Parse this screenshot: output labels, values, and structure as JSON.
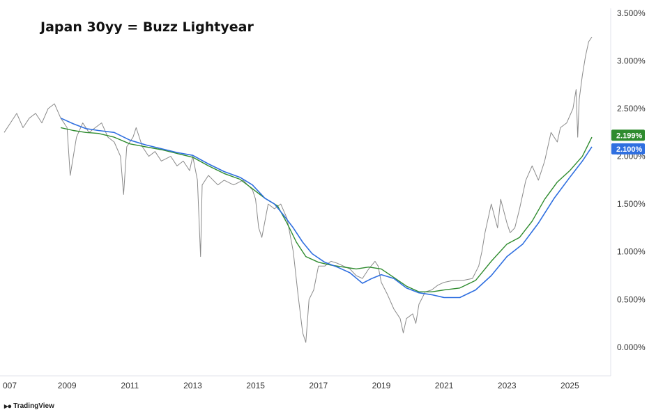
{
  "title": "Japan 30yy = Buzz Lightyear",
  "branding": "TradingView",
  "chart_data": {
    "type": "line",
    "xlim": [
      2007.0,
      2026.3
    ],
    "ylim": [
      -0.3,
      3.55
    ],
    "x_ticks": [
      "007",
      "2009",
      "2011",
      "2013",
      "2015",
      "2017",
      "2019",
      "2021",
      "2023",
      "2025"
    ],
    "x_tick_values": [
      2007.0,
      2009.0,
      2011.0,
      2013.0,
      2015.0,
      2017.0,
      2019.0,
      2021.0,
      2023.0,
      2025.0
    ],
    "y_ticks": [
      "0.000%",
      "0.500%",
      "1.000%",
      "1.500%",
      "2.000%",
      "2.500%",
      "3.000%",
      "3.500%"
    ],
    "y_tick_values": [
      0,
      0.5,
      1.0,
      1.5,
      2.0,
      2.5,
      3.0,
      3.5
    ],
    "colors": {
      "price": "#8a8a8a",
      "green": "#2e8b2e",
      "blue": "#2f6fe0"
    },
    "series": [
      {
        "values": [
          [
            2007.0,
            2.25
          ],
          [
            2007.2,
            2.35
          ],
          [
            2007.4,
            2.45
          ],
          [
            2007.6,
            2.3
          ],
          [
            2007.8,
            2.4
          ],
          [
            2008.0,
            2.45
          ],
          [
            2008.2,
            2.35
          ],
          [
            2008.4,
            2.5
          ],
          [
            2008.6,
            2.55
          ],
          [
            2008.8,
            2.4
          ],
          [
            2009.0,
            2.3
          ],
          [
            2009.1,
            1.8
          ],
          [
            2009.3,
            2.2
          ],
          [
            2009.5,
            2.35
          ],
          [
            2009.7,
            2.25
          ],
          [
            2009.9,
            2.3
          ],
          [
            2010.1,
            2.35
          ],
          [
            2010.3,
            2.2
          ],
          [
            2010.5,
            2.15
          ],
          [
            2010.7,
            2.0
          ],
          [
            2010.8,
            1.6
          ],
          [
            2010.9,
            2.1
          ],
          [
            2011.1,
            2.2
          ],
          [
            2011.2,
            2.3
          ],
          [
            2011.4,
            2.1
          ],
          [
            2011.6,
            2.0
          ],
          [
            2011.8,
            2.05
          ],
          [
            2012.0,
            1.95
          ],
          [
            2012.3,
            2.0
          ],
          [
            2012.5,
            1.9
          ],
          [
            2012.7,
            1.95
          ],
          [
            2012.9,
            1.85
          ],
          [
            2013.0,
            2.0
          ],
          [
            2013.15,
            1.75
          ],
          [
            2013.25,
            0.95
          ],
          [
            2013.3,
            1.7
          ],
          [
            2013.5,
            1.8
          ],
          [
            2013.8,
            1.7
          ],
          [
            2014.0,
            1.75
          ],
          [
            2014.3,
            1.7
          ],
          [
            2014.6,
            1.75
          ],
          [
            2014.9,
            1.65
          ],
          [
            2015.0,
            1.55
          ],
          [
            2015.1,
            1.25
          ],
          [
            2015.2,
            1.15
          ],
          [
            2015.4,
            1.5
          ],
          [
            2015.6,
            1.45
          ],
          [
            2015.8,
            1.5
          ],
          [
            2016.0,
            1.35
          ],
          [
            2016.2,
            1.0
          ],
          [
            2016.35,
            0.55
          ],
          [
            2016.5,
            0.15
          ],
          [
            2016.6,
            0.05
          ],
          [
            2016.7,
            0.5
          ],
          [
            2016.85,
            0.6
          ],
          [
            2017.0,
            0.85
          ],
          [
            2017.2,
            0.85
          ],
          [
            2017.4,
            0.9
          ],
          [
            2017.6,
            0.88
          ],
          [
            2017.8,
            0.85
          ],
          [
            2018.0,
            0.82
          ],
          [
            2018.2,
            0.75
          ],
          [
            2018.4,
            0.72
          ],
          [
            2018.6,
            0.82
          ],
          [
            2018.8,
            0.9
          ],
          [
            2018.9,
            0.85
          ],
          [
            2019.0,
            0.68
          ],
          [
            2019.2,
            0.55
          ],
          [
            2019.4,
            0.4
          ],
          [
            2019.6,
            0.3
          ],
          [
            2019.7,
            0.15
          ],
          [
            2019.8,
            0.3
          ],
          [
            2020.0,
            0.35
          ],
          [
            2020.1,
            0.25
          ],
          [
            2020.2,
            0.45
          ],
          [
            2020.4,
            0.58
          ],
          [
            2020.6,
            0.6
          ],
          [
            2020.8,
            0.65
          ],
          [
            2021.0,
            0.68
          ],
          [
            2021.3,
            0.7
          ],
          [
            2021.6,
            0.7
          ],
          [
            2021.9,
            0.72
          ],
          [
            2022.1,
            0.85
          ],
          [
            2022.2,
            1.0
          ],
          [
            2022.3,
            1.2
          ],
          [
            2022.5,
            1.5
          ],
          [
            2022.7,
            1.25
          ],
          [
            2022.8,
            1.55
          ],
          [
            2023.0,
            1.3
          ],
          [
            2023.1,
            1.2
          ],
          [
            2023.25,
            1.25
          ],
          [
            2023.4,
            1.45
          ],
          [
            2023.6,
            1.75
          ],
          [
            2023.8,
            1.9
          ],
          [
            2024.0,
            1.75
          ],
          [
            2024.2,
            1.95
          ],
          [
            2024.4,
            2.25
          ],
          [
            2024.6,
            2.15
          ],
          [
            2024.7,
            2.3
          ],
          [
            2024.9,
            2.35
          ],
          [
            2025.1,
            2.5
          ],
          [
            2025.2,
            2.7
          ],
          [
            2025.25,
            2.2
          ],
          [
            2025.3,
            2.6
          ],
          [
            2025.4,
            2.85
          ],
          [
            2025.5,
            3.05
          ],
          [
            2025.6,
            3.2
          ],
          [
            2025.7,
            3.25
          ]
        ]
      },
      {
        "values": [
          [
            2008.8,
            2.3
          ],
          [
            2009.2,
            2.27
          ],
          [
            2009.6,
            2.25
          ],
          [
            2010.0,
            2.24
          ],
          [
            2010.5,
            2.2
          ],
          [
            2011.0,
            2.13
          ],
          [
            2011.5,
            2.1
          ],
          [
            2012.0,
            2.07
          ],
          [
            2012.5,
            2.03
          ],
          [
            2013.0,
            1.99
          ],
          [
            2013.5,
            1.9
          ],
          [
            2014.0,
            1.82
          ],
          [
            2014.5,
            1.76
          ],
          [
            2014.9,
            1.66
          ],
          [
            2015.3,
            1.56
          ],
          [
            2015.7,
            1.48
          ],
          [
            2016.0,
            1.3
          ],
          [
            2016.3,
            1.1
          ],
          [
            2016.6,
            0.95
          ],
          [
            2017.0,
            0.89
          ],
          [
            2017.4,
            0.86
          ],
          [
            2017.8,
            0.84
          ],
          [
            2018.2,
            0.82
          ],
          [
            2018.6,
            0.84
          ],
          [
            2019.0,
            0.82
          ],
          [
            2019.4,
            0.73
          ],
          [
            2019.8,
            0.64
          ],
          [
            2020.2,
            0.58
          ],
          [
            2020.6,
            0.58
          ],
          [
            2021.0,
            0.6
          ],
          [
            2021.5,
            0.62
          ],
          [
            2022.0,
            0.7
          ],
          [
            2022.5,
            0.9
          ],
          [
            2023.0,
            1.08
          ],
          [
            2023.4,
            1.15
          ],
          [
            2023.8,
            1.32
          ],
          [
            2024.2,
            1.55
          ],
          [
            2024.6,
            1.73
          ],
          [
            2025.0,
            1.85
          ],
          [
            2025.4,
            2.0
          ],
          [
            2025.7,
            2.2
          ]
        ]
      },
      {
        "values": [
          [
            2008.8,
            2.4
          ],
          [
            2009.2,
            2.34
          ],
          [
            2009.6,
            2.29
          ],
          [
            2010.0,
            2.27
          ],
          [
            2010.5,
            2.25
          ],
          [
            2011.0,
            2.17
          ],
          [
            2011.5,
            2.12
          ],
          [
            2012.0,
            2.08
          ],
          [
            2012.5,
            2.04
          ],
          [
            2013.0,
            2.01
          ],
          [
            2013.5,
            1.92
          ],
          [
            2014.0,
            1.84
          ],
          [
            2014.5,
            1.78
          ],
          [
            2014.9,
            1.7
          ],
          [
            2015.3,
            1.56
          ],
          [
            2015.6,
            1.5
          ],
          [
            2015.9,
            1.38
          ],
          [
            2016.2,
            1.25
          ],
          [
            2016.5,
            1.1
          ],
          [
            2016.8,
            0.98
          ],
          [
            2017.2,
            0.89
          ],
          [
            2017.6,
            0.84
          ],
          [
            2018.0,
            0.78
          ],
          [
            2018.4,
            0.67
          ],
          [
            2018.7,
            0.72
          ],
          [
            2019.0,
            0.76
          ],
          [
            2019.4,
            0.72
          ],
          [
            2019.8,
            0.62
          ],
          [
            2020.2,
            0.57
          ],
          [
            2020.6,
            0.55
          ],
          [
            2021.0,
            0.52
          ],
          [
            2021.5,
            0.52
          ],
          [
            2022.0,
            0.6
          ],
          [
            2022.5,
            0.75
          ],
          [
            2023.0,
            0.95
          ],
          [
            2023.5,
            1.08
          ],
          [
            2024.0,
            1.3
          ],
          [
            2024.5,
            1.56
          ],
          [
            2025.0,
            1.78
          ],
          [
            2025.4,
            1.95
          ],
          [
            2025.7,
            2.1
          ]
        ]
      }
    ],
    "last_values": [
      {
        "label": "2.199%",
        "value": 2.199,
        "color": "#2e8b2e"
      },
      {
        "label": "2.100%",
        "value": 2.1,
        "color": "#2f6fe0"
      }
    ],
    "grid": false,
    "legend": "none"
  }
}
